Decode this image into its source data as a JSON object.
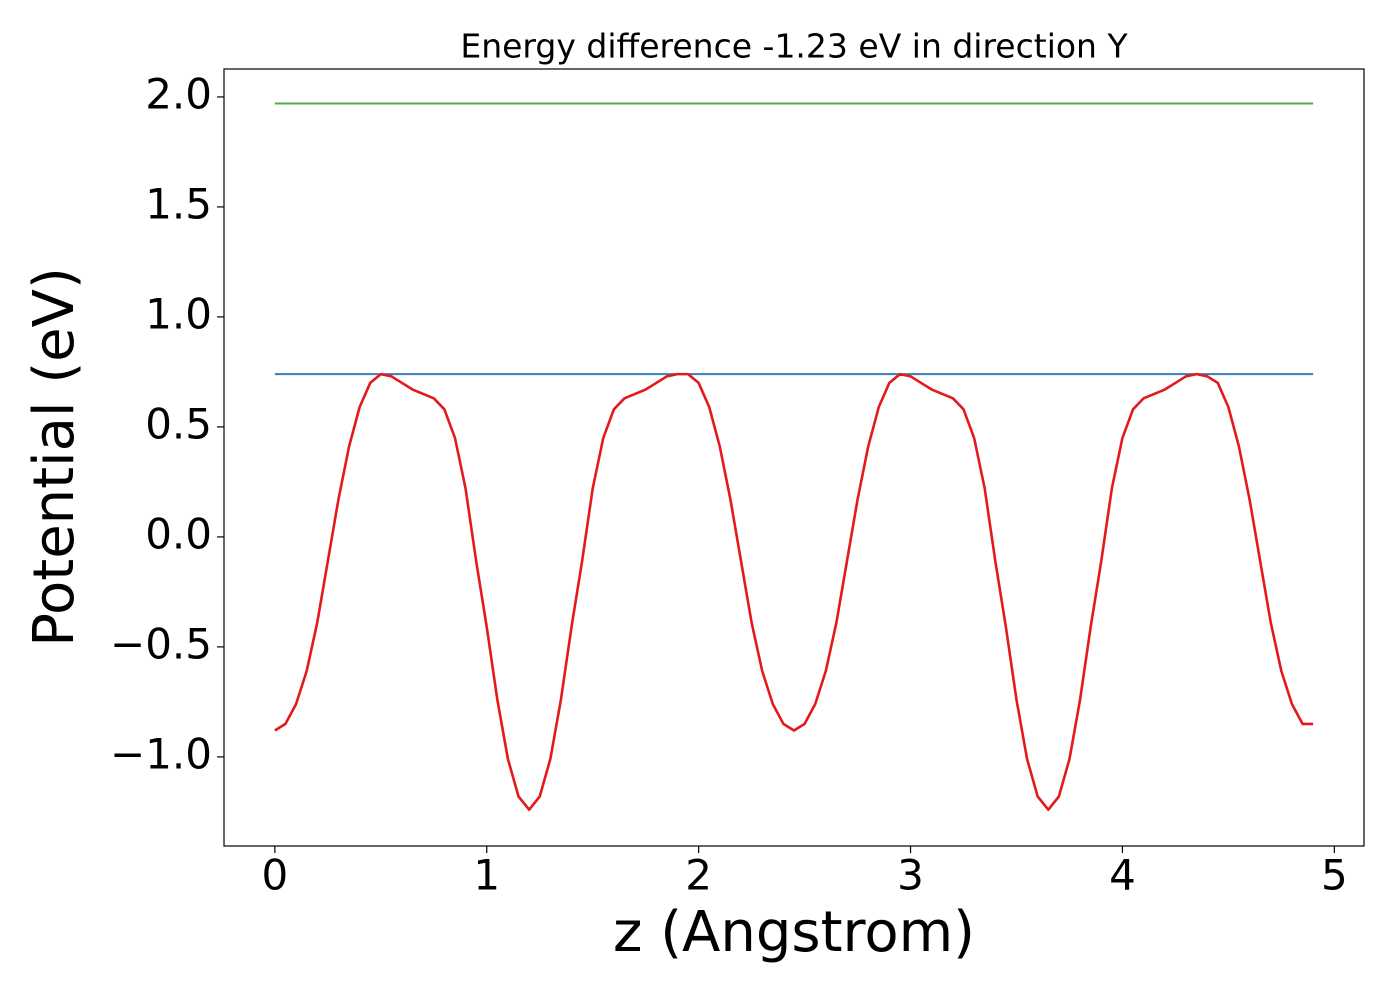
{
  "chart_data": {
    "type": "line",
    "title": "Energy difference -1.23 eV in direction Y",
    "xlabel": "z (Angstrom)",
    "ylabel": "Potential (eV)",
    "x": [
      0.0,
      0.05,
      0.1,
      0.15,
      0.2,
      0.25,
      0.3,
      0.35,
      0.4,
      0.45,
      0.5,
      0.55,
      0.6,
      0.65,
      0.7,
      0.75,
      0.8,
      0.85,
      0.9,
      0.95,
      1.0,
      1.05,
      1.1,
      1.15,
      1.2,
      1.25,
      1.3,
      1.35,
      1.4,
      1.45,
      1.5,
      1.55,
      1.6,
      1.65,
      1.7,
      1.75,
      1.8,
      1.85,
      1.9,
      1.95,
      2.0,
      2.05,
      2.1,
      2.15,
      2.2,
      2.25,
      2.3,
      2.35,
      2.4,
      2.45,
      2.5,
      2.55,
      2.6,
      2.65,
      2.7,
      2.75,
      2.8,
      2.85,
      2.9,
      2.95,
      3.0,
      3.05,
      3.1,
      3.15,
      3.2,
      3.25,
      3.3,
      3.35,
      3.4,
      3.45,
      3.5,
      3.55,
      3.6,
      3.65,
      3.7,
      3.75,
      3.8,
      3.85,
      3.9,
      3.95,
      4.0,
      4.05,
      4.1,
      4.15,
      4.2,
      4.25,
      4.3,
      4.35,
      4.4,
      4.45,
      4.5,
      4.55,
      4.6,
      4.65,
      4.7,
      4.75,
      4.8,
      4.85,
      4.9
    ],
    "series": [
      {
        "color": "#e31a1c",
        "values": [
          -0.88,
          -0.85,
          -0.76,
          -0.61,
          -0.39,
          -0.11,
          0.17,
          0.41,
          0.59,
          0.7,
          0.74,
          0.73,
          0.7,
          0.67,
          0.65,
          0.63,
          0.58,
          0.45,
          0.22,
          -0.11,
          -0.41,
          -0.74,
          -1.01,
          -1.18,
          -1.24,
          -1.18,
          -1.01,
          -0.74,
          -0.41,
          -0.11,
          0.22,
          0.45,
          0.58,
          0.63,
          0.65,
          0.67,
          0.7,
          0.73,
          0.74,
          0.74,
          0.7,
          0.59,
          0.41,
          0.17,
          -0.11,
          -0.39,
          -0.61,
          -0.76,
          -0.85,
          -0.88,
          -0.85,
          -0.76,
          -0.61,
          -0.39,
          -0.11,
          0.17,
          0.41,
          0.59,
          0.7,
          0.74,
          0.73,
          0.7,
          0.67,
          0.65,
          0.63,
          0.58,
          0.45,
          0.22,
          -0.11,
          -0.41,
          -0.74,
          -1.01,
          -1.18,
          -1.24,
          -1.18,
          -1.01,
          -0.74,
          -0.41,
          -0.11,
          0.22,
          0.45,
          0.58,
          0.63,
          0.65,
          0.67,
          0.7,
          0.73,
          0.74,
          0.73,
          0.7,
          0.59,
          0.41,
          0.17,
          -0.11,
          -0.39,
          -0.61,
          -0.76,
          -0.85,
          -0.85
        ]
      }
    ],
    "hlines": [
      {
        "y": 1.97,
        "xmin": 0,
        "xmax": 4.9,
        "color": "#4daf4a"
      },
      {
        "y": 0.74,
        "xmin": 0,
        "xmax": 4.9,
        "color": "#377eb8"
      }
    ],
    "xlim": [
      -0.24,
      5.14
    ],
    "ylim": [
      -1.405,
      2.127
    ],
    "xticks": [
      0,
      1,
      2,
      3,
      4,
      5
    ],
    "yticks": [
      {
        "value": -1.0,
        "label": "−1.0"
      },
      {
        "value": -0.5,
        "label": "−0.5"
      },
      {
        "value": 0,
        "label": "0.0"
      },
      0.5,
      {
        "value": 1,
        "label": "1.0"
      },
      1.5,
      {
        "value": 2,
        "label": "2.0"
      }
    ]
  }
}
